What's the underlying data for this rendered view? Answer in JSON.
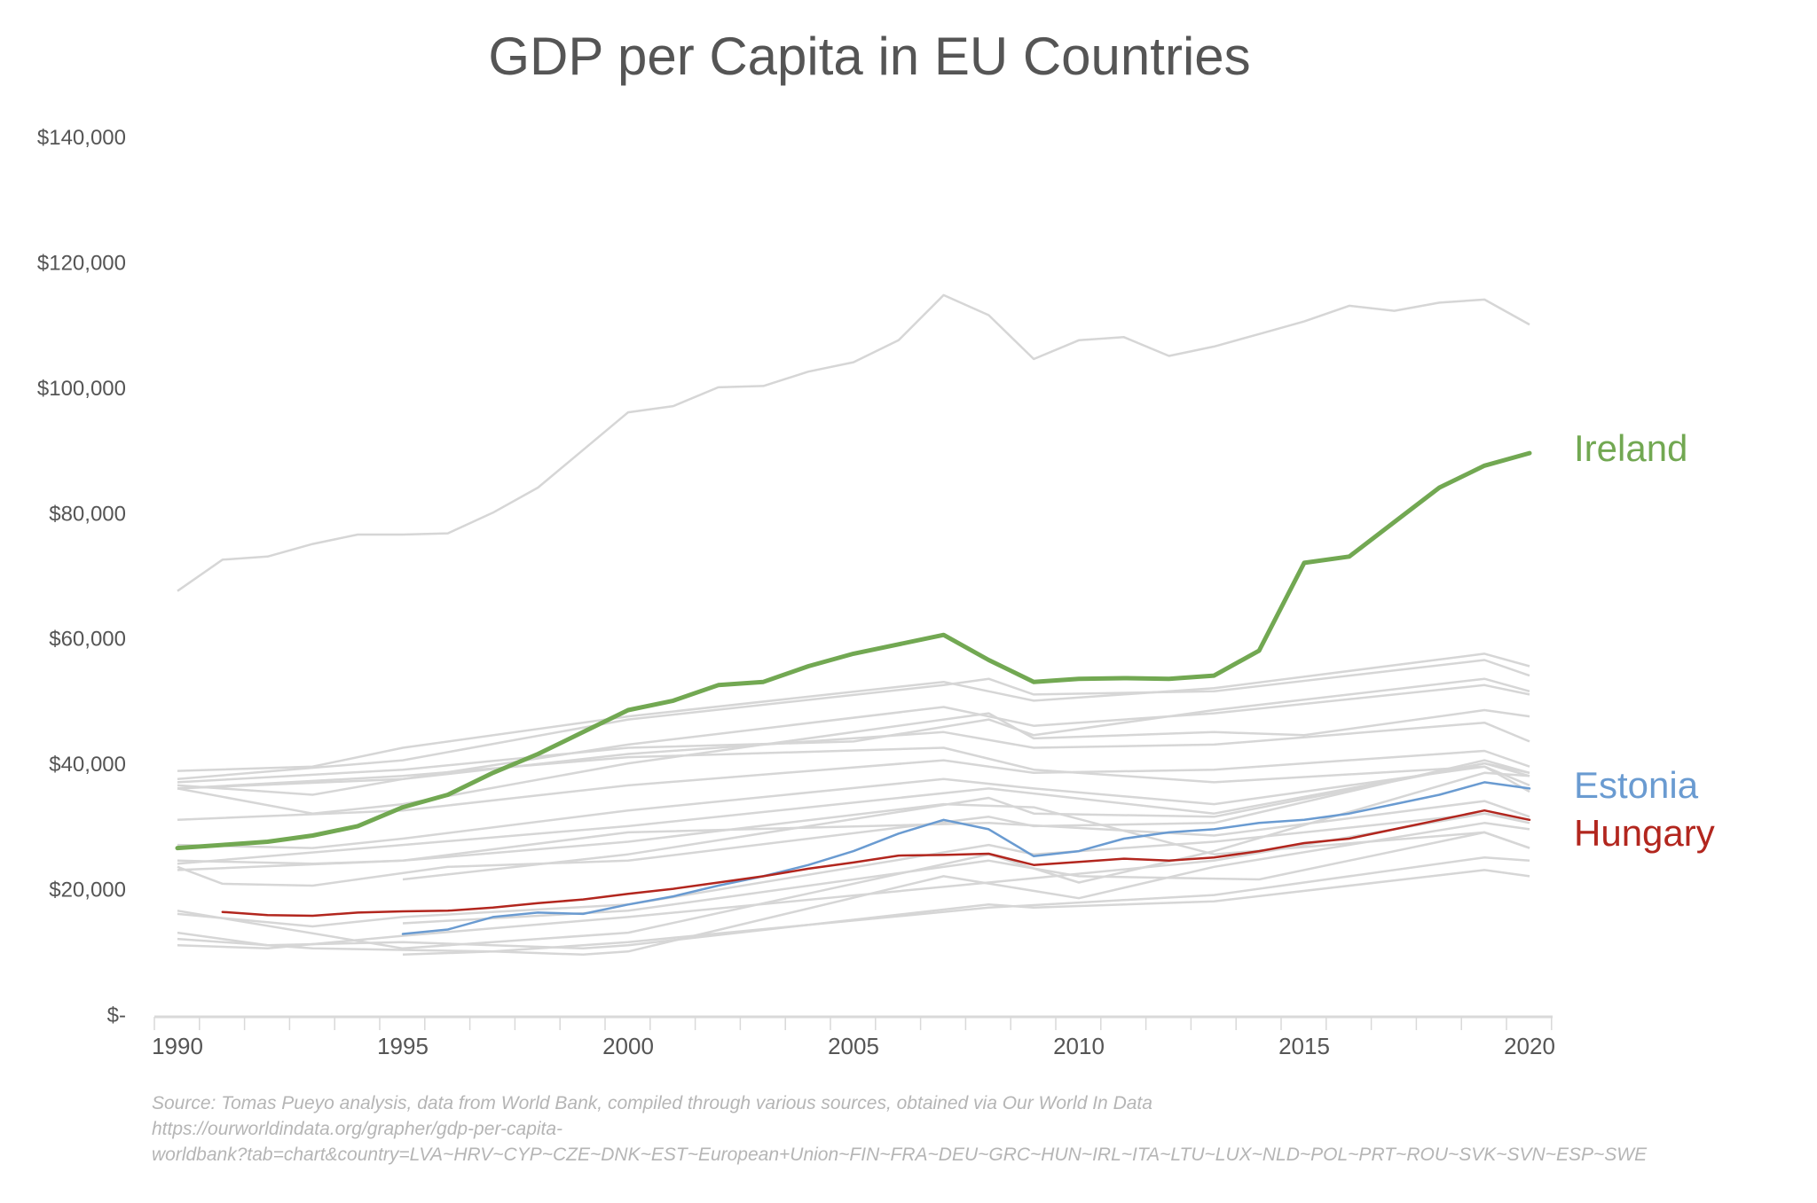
{
  "chart_data": {
    "type": "line",
    "title": "GDP per Capita in EU Countries",
    "xlabel": "",
    "ylabel": "",
    "xlim": [
      1990,
      2020
    ],
    "ylim": [
      0,
      140000
    ],
    "grid": false,
    "legend": "direct labels at right end of lines",
    "y_ticks": [
      {
        "value": 0,
        "label": "$-"
      },
      {
        "value": 20000,
        "label": "$20,000"
      },
      {
        "value": 40000,
        "label": "$40,000"
      },
      {
        "value": 60000,
        "label": "$60,000"
      },
      {
        "value": 80000,
        "label": "$80,000"
      },
      {
        "value": 100000,
        "label": "$100,000"
      },
      {
        "value": 120000,
        "label": "$120,000"
      },
      {
        "value": 140000,
        "label": "$140,000"
      }
    ],
    "x_ticks": [
      {
        "value": 1990,
        "label": "1990"
      },
      {
        "value": 1995,
        "label": "1995"
      },
      {
        "value": 2000,
        "label": "2000"
      },
      {
        "value": 2005,
        "label": "2005"
      },
      {
        "value": 2010,
        "label": "2010"
      },
      {
        "value": 2015,
        "label": "2015"
      },
      {
        "value": 2020,
        "label": "2020"
      }
    ],
    "highlighted": [
      {
        "name": "Ireland",
        "color": "#72a852",
        "width": 5,
        "start": 1990,
        "values": [
          26500,
          27000,
          27500,
          28500,
          30000,
          33000,
          35000,
          38500,
          41500,
          45000,
          48500,
          50000,
          52500,
          53000,
          55500,
          57500,
          59000,
          60500,
          56500,
          53000,
          53500,
          53600,
          53500,
          54000,
          58000,
          72000,
          73000,
          78500,
          84000,
          87500,
          89500
        ]
      },
      {
        "name": "Estonia",
        "color": "#6a9bd1",
        "width": 2.5,
        "start": 1995,
        "values": [
          12800,
          13500,
          15500,
          16200,
          16000,
          17500,
          18800,
          20500,
          22000,
          23800,
          26000,
          28800,
          31000,
          29500,
          25200,
          26000,
          28000,
          29000,
          29500,
          30500,
          31000,
          32000,
          33500,
          35000,
          37000,
          36000
        ]
      },
      {
        "name": "Hungary",
        "color": "#b2261e",
        "width": 2.5,
        "start": 1991,
        "values": [
          16300,
          15800,
          15700,
          16200,
          16400,
          16500,
          17000,
          17700,
          18300,
          19200,
          20000,
          21000,
          22000,
          23200,
          24200,
          25300,
          25400,
          25600,
          23800,
          24300,
          24800,
          24500,
          25000,
          26000,
          27300,
          28000,
          29500,
          31000,
          32500,
          31000
        ]
      }
    ],
    "background_series_color": "#d6d6d6",
    "background_series": [
      {
        "name": "LUX",
        "points": [
          [
            1990,
            67500
          ],
          [
            1991,
            72500
          ],
          [
            1992,
            73000
          ],
          [
            1993,
            75000
          ],
          [
            1994,
            76500
          ],
          [
            1995,
            76500
          ],
          [
            1996,
            76700
          ],
          [
            1997,
            80000
          ],
          [
            1998,
            84000
          ],
          [
            1999,
            90000
          ],
          [
            2000,
            96000
          ],
          [
            2001,
            97000
          ],
          [
            2002,
            100000
          ],
          [
            2003,
            100200
          ],
          [
            2004,
            102500
          ],
          [
            2005,
            104000
          ],
          [
            2006,
            107500
          ],
          [
            2007,
            114700
          ],
          [
            2008,
            111500
          ],
          [
            2009,
            104500
          ],
          [
            2010,
            107500
          ],
          [
            2011,
            108000
          ],
          [
            2012,
            105000
          ],
          [
            2013,
            106500
          ],
          [
            2014,
            108500
          ],
          [
            2015,
            110500
          ],
          [
            2016,
            113000
          ],
          [
            2017,
            112200
          ],
          [
            2018,
            113500
          ],
          [
            2019,
            114000
          ],
          [
            2020,
            110000
          ]
        ]
      },
      {
        "name": "DNK",
        "points": [
          [
            1990,
            38800
          ],
          [
            1993,
            39500
          ],
          [
            1995,
            42500
          ],
          [
            2000,
            47500
          ],
          [
            2007,
            53000
          ],
          [
            2009,
            50000
          ],
          [
            2013,
            52000
          ],
          [
            2019,
            57500
          ],
          [
            2020,
            55500
          ]
        ]
      },
      {
        "name": "NLD",
        "points": [
          [
            1990,
            37500
          ],
          [
            1995,
            40500
          ],
          [
            2000,
            47000
          ],
          [
            2007,
            52500
          ],
          [
            2008,
            53500
          ],
          [
            2009,
            51000
          ],
          [
            2013,
            51500
          ],
          [
            2019,
            56500
          ],
          [
            2020,
            54000
          ]
        ]
      },
      {
        "name": "SWE",
        "points": [
          [
            1990,
            36500
          ],
          [
            1993,
            35000
          ],
          [
            1995,
            37500
          ],
          [
            2000,
            43000
          ],
          [
            2007,
            49000
          ],
          [
            2009,
            46000
          ],
          [
            2013,
            48000
          ],
          [
            2019,
            52500
          ],
          [
            2020,
            51000
          ]
        ]
      },
      {
        "name": "DEU",
        "points": [
          [
            1990,
            37000
          ],
          [
            1995,
            39000
          ],
          [
            2000,
            42500
          ],
          [
            2005,
            43500
          ],
          [
            2008,
            47000
          ],
          [
            2009,
            44500
          ],
          [
            2013,
            48500
          ],
          [
            2019,
            53500
          ],
          [
            2020,
            51500
          ]
        ]
      },
      {
        "name": "FIN",
        "points": [
          [
            1990,
            36000
          ],
          [
            1993,
            32000
          ],
          [
            1995,
            33500
          ],
          [
            2000,
            40000
          ],
          [
            2008,
            48000
          ],
          [
            2009,
            44000
          ],
          [
            2013,
            45000
          ],
          [
            2015,
            44500
          ],
          [
            2019,
            48500
          ],
          [
            2020,
            47500
          ]
        ]
      },
      {
        "name": "FRA",
        "points": [
          [
            1990,
            36000
          ],
          [
            1995,
            37500
          ],
          [
            2000,
            41500
          ],
          [
            2007,
            45000
          ],
          [
            2009,
            42500
          ],
          [
            2013,
            43000
          ],
          [
            2019,
            46500
          ],
          [
            2020,
            43500
          ]
        ]
      },
      {
        "name": "ITA",
        "points": [
          [
            1990,
            36000
          ],
          [
            1995,
            38000
          ],
          [
            2000,
            41000
          ],
          [
            2007,
            42500
          ],
          [
            2009,
            39000
          ],
          [
            2013,
            37000
          ],
          [
            2019,
            39500
          ],
          [
            2020,
            36500
          ]
        ]
      },
      {
        "name": "European Union",
        "points": [
          [
            1990,
            31000
          ],
          [
            1995,
            32500
          ],
          [
            2000,
            36500
          ],
          [
            2007,
            40500
          ],
          [
            2009,
            38500
          ],
          [
            2013,
            39000
          ],
          [
            2019,
            42000
          ],
          [
            2020,
            39500
          ]
        ]
      },
      {
        "name": "ESP",
        "points": [
          [
            1990,
            27000
          ],
          [
            1993,
            26500
          ],
          [
            1995,
            28000
          ],
          [
            2000,
            32500
          ],
          [
            2007,
            37500
          ],
          [
            2009,
            36000
          ],
          [
            2013,
            33500
          ],
          [
            2019,
            39500
          ],
          [
            2020,
            35500
          ]
        ]
      },
      {
        "name": "CYP",
        "points": [
          [
            1990,
            24000
          ],
          [
            1995,
            27000
          ],
          [
            2000,
            30000
          ],
          [
            2008,
            36000
          ],
          [
            2013,
            32000
          ],
          [
            2019,
            40000
          ],
          [
            2020,
            38000
          ]
        ]
      },
      {
        "name": "GRC",
        "points": [
          [
            1990,
            24500
          ],
          [
            1993,
            24000
          ],
          [
            1995,
            24500
          ],
          [
            2000,
            27500
          ],
          [
            2007,
            33500
          ],
          [
            2009,
            33000
          ],
          [
            2013,
            25500
          ],
          [
            2019,
            29000
          ],
          [
            2020,
            26500
          ]
        ]
      },
      {
        "name": "SVN",
        "points": [
          [
            1995,
            21500
          ],
          [
            2000,
            25500
          ],
          [
            2008,
            34500
          ],
          [
            2009,
            32000
          ],
          [
            2013,
            31500
          ],
          [
            2019,
            40000
          ],
          [
            2020,
            38500
          ]
        ]
      },
      {
        "name": "PRT",
        "points": [
          [
            1990,
            23000
          ],
          [
            1995,
            24500
          ],
          [
            2000,
            29000
          ],
          [
            2008,
            30500
          ],
          [
            2013,
            28500
          ],
          [
            2019,
            34000
          ],
          [
            2020,
            31500
          ]
        ]
      },
      {
        "name": "CZE",
        "points": [
          [
            1990,
            23500
          ],
          [
            1991,
            20800
          ],
          [
            1993,
            20500
          ],
          [
            1996,
            23500
          ],
          [
            2000,
            24500
          ],
          [
            2008,
            31500
          ],
          [
            2009,
            30000
          ],
          [
            2013,
            30500
          ],
          [
            2019,
            40500
          ],
          [
            2020,
            38500
          ]
        ]
      },
      {
        "name": "SVK",
        "points": [
          [
            1990,
            16000
          ],
          [
            1993,
            14000
          ],
          [
            1995,
            15500
          ],
          [
            2000,
            17500
          ],
          [
            2008,
            27000
          ],
          [
            2009,
            25500
          ],
          [
            2013,
            27500
          ],
          [
            2019,
            32000
          ],
          [
            2020,
            30500
          ]
        ]
      },
      {
        "name": "LTU",
        "points": [
          [
            1990,
            16500
          ],
          [
            1995,
            10500
          ],
          [
            2000,
            13000
          ],
          [
            2008,
            25500
          ],
          [
            2010,
            21000
          ],
          [
            2013,
            26000
          ],
          [
            2019,
            38500
          ],
          [
            2020,
            38000
          ]
        ]
      },
      {
        "name": "POL",
        "points": [
          [
            1990,
            11000
          ],
          [
            1992,
            10500
          ],
          [
            1995,
            12500
          ],
          [
            2000,
            15500
          ],
          [
            2008,
            21000
          ],
          [
            2013,
            24500
          ],
          [
            2019,
            32000
          ],
          [
            2020,
            31000
          ]
        ]
      },
      {
        "name": "LVA",
        "points": [
          [
            1995,
            9500
          ],
          [
            1997,
            10000
          ],
          [
            1999,
            9500
          ],
          [
            2000,
            10000
          ],
          [
            2007,
            22000
          ],
          [
            2010,
            18500
          ],
          [
            2013,
            23500
          ],
          [
            2019,
            30500
          ],
          [
            2020,
            29500
          ]
        ]
      },
      {
        "name": "HRV",
        "points": [
          [
            1995,
            14500
          ],
          [
            2000,
            16500
          ],
          [
            2008,
            24500
          ],
          [
            2010,
            22000
          ],
          [
            2014,
            21500
          ],
          [
            2019,
            29000
          ],
          [
            2020,
            26500
          ]
        ]
      },
      {
        "name": "ROU",
        "points": [
          [
            1990,
            13000
          ],
          [
            1992,
            11000
          ],
          [
            1995,
            11500
          ],
          [
            1999,
            10500
          ],
          [
            2000,
            11000
          ],
          [
            2008,
            17500
          ],
          [
            2009,
            17000
          ],
          [
            2013,
            18000
          ],
          [
            2019,
            23000
          ],
          [
            2020,
            22000
          ]
        ]
      },
      {
        "name": "BGR",
        "points": [
          [
            1990,
            12000
          ],
          [
            1993,
            10500
          ],
          [
            1997,
            10000
          ],
          [
            2000,
            11500
          ],
          [
            2008,
            17000
          ],
          [
            2013,
            19000
          ],
          [
            2019,
            25000
          ],
          [
            2020,
            24500
          ]
        ]
      }
    ]
  },
  "source": {
    "line1": "Source: Tomas Pueyo analysis, data from World Bank, compiled through various sources, obtained via Our World In Data",
    "line2": "https://ourworldindata.org/grapher/gdp-per-capita-",
    "line3": "worldbank?tab=chart&country=LVA~HRV~CYP~CZE~DNK~EST~European+Union~FIN~FRA~DEU~GRC~HUN~IRL~ITA~LTU~LUX~NLD~POL~PRT~ROU~SVK~SVN~ESP~SWE"
  }
}
